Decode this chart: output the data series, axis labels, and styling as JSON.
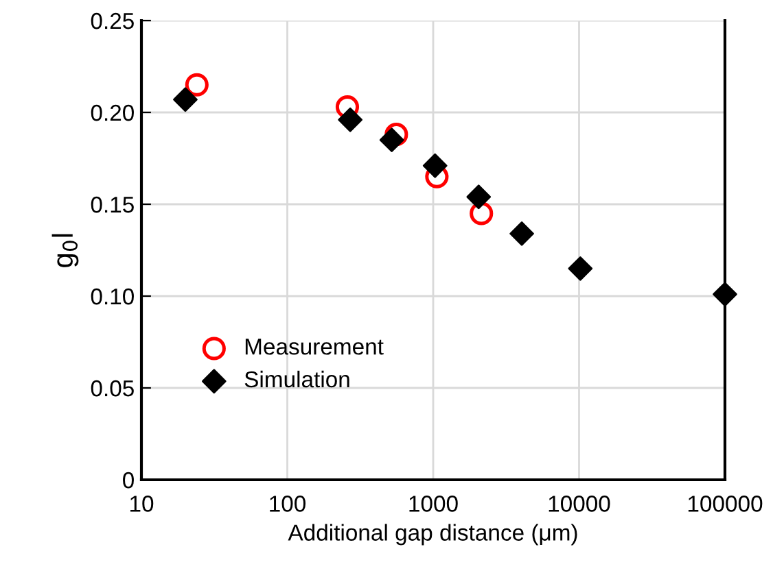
{
  "chart_data": {
    "type": "scatter",
    "xlabel": "Additional gap distance (μm)",
    "ylabel": "g$_{0}$l",
    "log": "x",
    "xlim": [
      10,
      100000
    ],
    "xticks": [
      10,
      100,
      1000,
      10000,
      100000
    ],
    "ylim": [
      0,
      0.25
    ],
    "yticks": [
      0,
      {
        "value": 0.05,
        "label": "0.05"
      },
      {
        "value": 0.1,
        "label": "0.10"
      },
      0.15,
      {
        "value": 0.2,
        "label": "0.20"
      },
      0.25
    ],
    "grid": true,
    "legend": "left",
    "series": [
      {
        "name": "Measurement",
        "color": "#ff0000",
        "marker": "circle",
        "x": [
          24,
          258,
          559,
          1060,
          2140
        ],
        "values": [
          0.215,
          0.203,
          0.188,
          0.165,
          0.145
        ]
      },
      {
        "name": "Simulation",
        "color": "#000000",
        "marker": "diamond",
        "x": [
          20,
          270,
          520,
          1030,
          2050,
          4050,
          10200,
          100000
        ],
        "values": [
          0.207,
          0.196,
          0.185,
          0.171,
          0.154,
          0.134,
          0.115,
          0.101
        ]
      }
    ]
  }
}
